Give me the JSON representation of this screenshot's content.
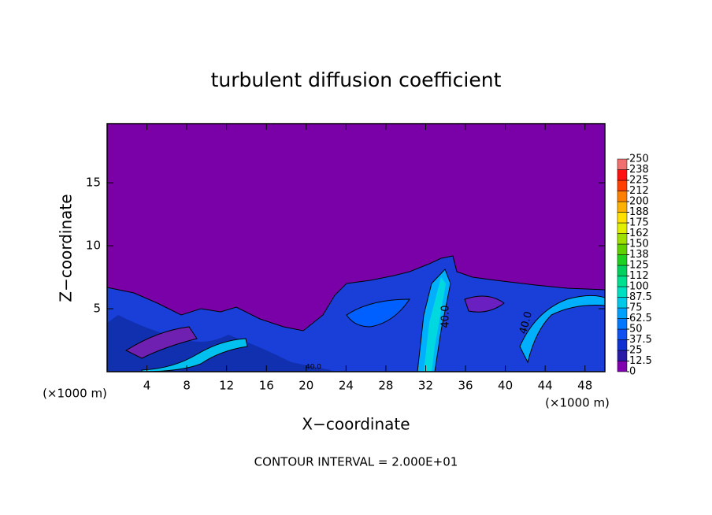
{
  "chart_data": {
    "type": "contour",
    "title": "turbulent diffusion coefficient",
    "x_label": "X−coordinate",
    "y_label": "Z−coordinate",
    "x_unit_left": "(×1000 m)",
    "x_unit_right": "(×1000 m)",
    "footer": "CONTOUR INTERVAL = 2.000E+01",
    "contour_labels": [
      "40.0",
      "40.0",
      "40.0"
    ],
    "xlim": [
      0,
      50
    ],
    "xticks": [
      4,
      8,
      12,
      16,
      20,
      24,
      28,
      32,
      36,
      40,
      44,
      48
    ],
    "ylim": [
      0,
      19.7
    ],
    "yticks": [
      5,
      10,
      15
    ],
    "colorbar": {
      "ticks": [
        0,
        12.5,
        25,
        37.5,
        50,
        62.5,
        75,
        87.5,
        100,
        {
          "value": 112.5,
          "label": "112"
        },
        125,
        {
          "value": 137.5,
          "label": "138"
        },
        150,
        {
          "value": 162.5,
          "label": "162"
        },
        175,
        {
          "value": 187.5,
          "label": "188"
        },
        200,
        {
          "value": 212.5,
          "label": "212"
        },
        225,
        {
          "value": 237.5,
          "label": "238"
        },
        250
      ],
      "colors": [
        "#8000b0",
        "#2a1aa8",
        "#1030d0",
        "#1050f0",
        "#0078ff",
        "#00a0ff",
        "#00c8e8",
        "#00e0c0",
        "#00e090",
        "#00d060",
        "#20d020",
        "#60d000",
        "#a0e000",
        "#e0f000",
        "#ffe000",
        "#ffb000",
        "#ff8000",
        "#ff4000",
        "#ff1010",
        "#f07070"
      ]
    }
  }
}
